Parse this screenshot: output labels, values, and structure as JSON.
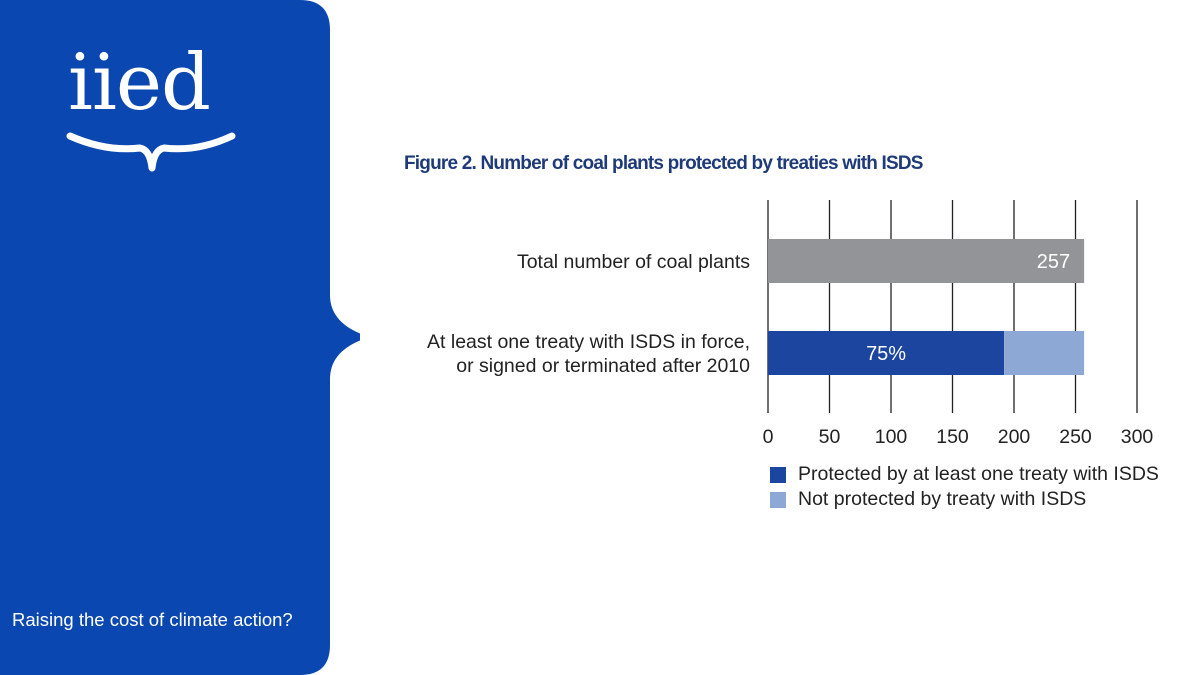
{
  "brand": {
    "logo_text": "iied",
    "tagline": "Raising the cost of climate action?",
    "sidebar_color": "#0b47b0"
  },
  "figure": {
    "title": "Figure 2. Number of coal plants protected by treaties with ISDS"
  },
  "chart_data": {
    "type": "bar",
    "orientation": "horizontal",
    "stacked": true,
    "categories": [
      "Total number of coal plants",
      "At least one treaty with ISDS in force, or signed or terminated after 2010"
    ],
    "category_lines": [
      [
        "Total number of coal plants"
      ],
      [
        "At least one treaty with ISDS in force,",
        "or signed or terminated after 2010"
      ]
    ],
    "series": [
      {
        "name": "Total number of coal plants",
        "values": [
          257,
          null
        ],
        "color": "#929497",
        "legend": false
      },
      {
        "name": "Protected by at least one treaty with ISDS",
        "values": [
          null,
          192
        ],
        "color": "#1c45a0",
        "legend": true
      },
      {
        "name": "Not protected by treaty with ISDS",
        "values": [
          null,
          65
        ],
        "color": "#8ea8d6",
        "legend": true
      }
    ],
    "data_labels": [
      {
        "category": 0,
        "series": 0,
        "text": "257"
      },
      {
        "category": 1,
        "series": 1,
        "text": "75%"
      }
    ],
    "xlim": [
      0,
      300
    ],
    "xticks": [
      0,
      50,
      100,
      150,
      200,
      250,
      300
    ],
    "xtick_labels": [
      "0",
      "50",
      "100",
      "150",
      "200",
      "250",
      "300"
    ],
    "grid": true,
    "legend_position": "bottom"
  }
}
